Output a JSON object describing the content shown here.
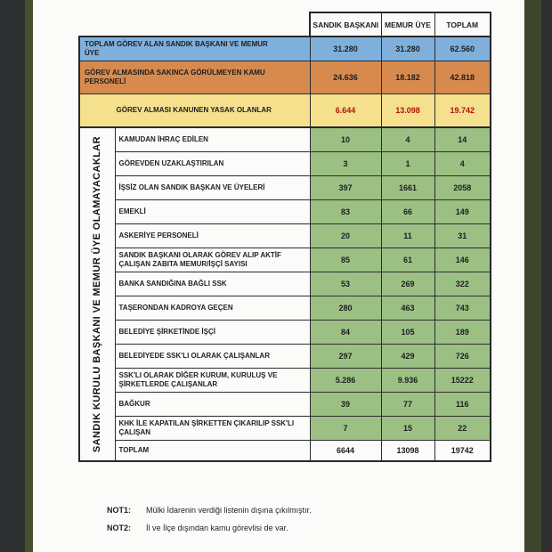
{
  "table": {
    "columns": [
      "SANDIK BAŞKANI",
      "MEMUR ÜYE",
      "TOPLAM"
    ],
    "summary_rows": [
      {
        "label": "TOPLAM GÖREV ALAN SANDIK BAŞKANI VE MEMUR ÜYE",
        "values": [
          "31.280",
          "31.280",
          "62.560"
        ],
        "color": "blue",
        "values_red": false
      },
      {
        "label": "GÖREV ALMASINDA SAKINCA GÖRÜLMEYEN KAMU PERSONELİ",
        "values": [
          "24.636",
          "18.182",
          "42.818"
        ],
        "color": "orange",
        "values_red": false
      },
      {
        "label": "GÖREV ALMASI KANUNEN YASAK OLANLAR",
        "values": [
          "6.644",
          "13.098",
          "19.742"
        ],
        "color": "yellow",
        "values_red": true
      }
    ],
    "group_label": "SANDIK KURULU BAŞKANI VE MEMUR ÜYE OLAMAYACAKLAR",
    "detail_rows": [
      {
        "label": "KAMUDAN İHRAÇ EDİLEN",
        "values": [
          "10",
          "4",
          "14"
        ]
      },
      {
        "label": "GÖREVDEN UZAKLAŞTIRILAN",
        "values": [
          "3",
          "1",
          "4"
        ]
      },
      {
        "label": "İŞSİZ  OLAN SANDIK BAŞKAN VE ÜYELERİ",
        "values": [
          "397",
          "1661",
          "2058"
        ]
      },
      {
        "label": "EMEKLİ",
        "values": [
          "83",
          "66",
          "149"
        ]
      },
      {
        "label": "ASKERİYE PERSONELİ",
        "values": [
          "20",
          "11",
          "31"
        ]
      },
      {
        "label": "SANDIK BAŞKANI OLARAK GÖREV ALIP AKTİF ÇALIŞAN ZABITA MEMUR/İŞÇİ SAYISI",
        "values": [
          "85",
          "61",
          "146"
        ]
      },
      {
        "label": "BANKA SANDIĞINA BAĞLI SSK",
        "values": [
          "53",
          "269",
          "322"
        ]
      },
      {
        "label": "TAŞERONDAN KADROYA GEÇEN",
        "values": [
          "280",
          "463",
          "743"
        ]
      },
      {
        "label": "BELEDİYE ŞİRKETİNDE İŞÇİ",
        "values": [
          "84",
          "105",
          "189"
        ]
      },
      {
        "label": "BELEDİYEDE SSK'LI OLARAK ÇALIŞANLAR",
        "values": [
          "297",
          "429",
          "726"
        ]
      },
      {
        "label": "SSK'LI OLARAK DİĞER  KURUM, KURULUŞ VE ŞİRKETLERDE ÇALIŞANLAR",
        "values": [
          "5.286",
          "9.936",
          "15222"
        ]
      },
      {
        "label": "BAĞKUR",
        "values": [
          "39",
          "77",
          "116"
        ]
      },
      {
        "label": "KHK İLE KAPATILAN ŞİRKETTEN ÇIKARILIP SSK'LI ÇALIŞAN",
        "values": [
          "7",
          "15",
          "22"
        ]
      }
    ],
    "total_row": {
      "label": "TOPLAM",
      "values": [
        "6644",
        "13098",
        "19742"
      ]
    }
  },
  "notes": [
    {
      "label": "NOT1:",
      "text": "Mülki İdarenin verdiği listenin dışına çıkılmıştır."
    },
    {
      "label": "NOT2:",
      "text": "İl ve İlçe dışından kamu görevlisi de var."
    }
  ],
  "colors": {
    "row_blue": "#7fb0dc",
    "row_orange": "#d78a4e",
    "row_yellow": "#f5e18d",
    "cell_green": "#9cc084",
    "forbidden_value_red": "#b01212",
    "page_background": "#fbfbfa",
    "viewer_background": "#2e2f31",
    "scan_edge_olive": "#46502f",
    "border": "#2c2c2c"
  }
}
